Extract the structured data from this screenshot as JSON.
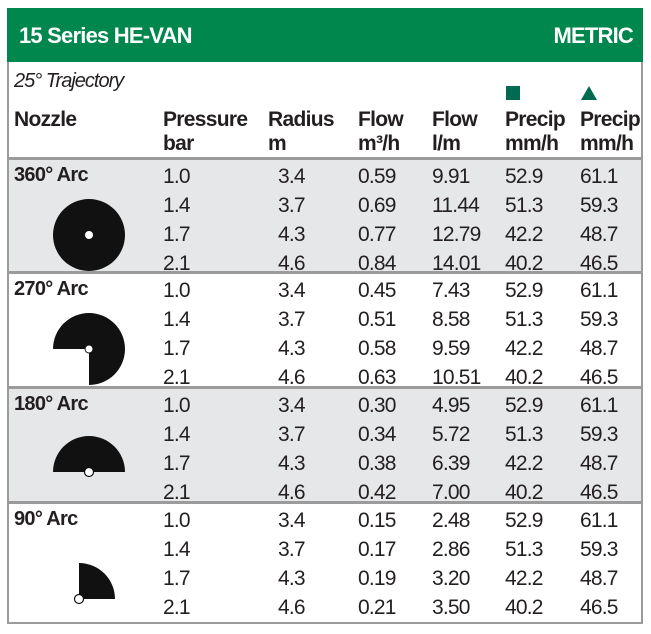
{
  "header": {
    "title": "15 Series HE-VAN",
    "units": "METRIC",
    "green": "#00874d"
  },
  "trajectory": "25° Trajectory",
  "columns": {
    "nozzle": "Nozzle",
    "pressure": [
      "Pressure",
      "bar"
    ],
    "radius": [
      "Radius",
      "m"
    ],
    "flow_m3h": [
      "Flow",
      "m³/h"
    ],
    "flow_lm": [
      "Flow",
      "l/m"
    ],
    "precip_square": [
      "Precip",
      "mm/h"
    ],
    "precip_triangle": [
      "Precip",
      "mm/h"
    ]
  },
  "precip_symbols": [
    "square-icon",
    "triangle-icon"
  ],
  "sections": [
    {
      "label": "360° Arc",
      "arc": 360,
      "shaded": true,
      "rows": [
        [
          "1.0",
          "3.4",
          "0.59",
          "9.91",
          "52.9",
          "61.1"
        ],
        [
          "1.4",
          "3.7",
          "0.69",
          "11.44",
          "51.3",
          "59.3"
        ],
        [
          "1.7",
          "4.3",
          "0.77",
          "12.79",
          "42.2",
          "48.7"
        ],
        [
          "2.1",
          "4.6",
          "0.84",
          "14.01",
          "40.2",
          "46.5"
        ]
      ]
    },
    {
      "label": "270° Arc",
      "arc": 270,
      "shaded": false,
      "rows": [
        [
          "1.0",
          "3.4",
          "0.45",
          "7.43",
          "52.9",
          "61.1"
        ],
        [
          "1.4",
          "3.7",
          "0.51",
          "8.58",
          "51.3",
          "59.3"
        ],
        [
          "1.7",
          "4.3",
          "0.58",
          "9.59",
          "42.2",
          "48.7"
        ],
        [
          "2.1",
          "4.6",
          "0.63",
          "10.51",
          "40.2",
          "46.5"
        ]
      ]
    },
    {
      "label": "180° Arc",
      "arc": 180,
      "shaded": true,
      "rows": [
        [
          "1.0",
          "3.4",
          "0.30",
          "4.95",
          "52.9",
          "61.1"
        ],
        [
          "1.4",
          "3.7",
          "0.34",
          "5.72",
          "51.3",
          "59.3"
        ],
        [
          "1.7",
          "4.3",
          "0.38",
          "6.39",
          "42.2",
          "48.7"
        ],
        [
          "2.1",
          "4.6",
          "0.42",
          "7.00",
          "40.2",
          "46.5"
        ]
      ]
    },
    {
      "label": "90° Arc",
      "arc": 90,
      "shaded": false,
      "rows": [
        [
          "1.0",
          "3.4",
          "0.15",
          "2.48",
          "52.9",
          "61.1"
        ],
        [
          "1.4",
          "3.7",
          "0.17",
          "2.86",
          "51.3",
          "59.3"
        ],
        [
          "1.7",
          "4.3",
          "0.19",
          "3.20",
          "42.2",
          "48.7"
        ],
        [
          "2.1",
          "4.6",
          "0.21",
          "3.50",
          "40.2",
          "46.5"
        ]
      ]
    }
  ]
}
